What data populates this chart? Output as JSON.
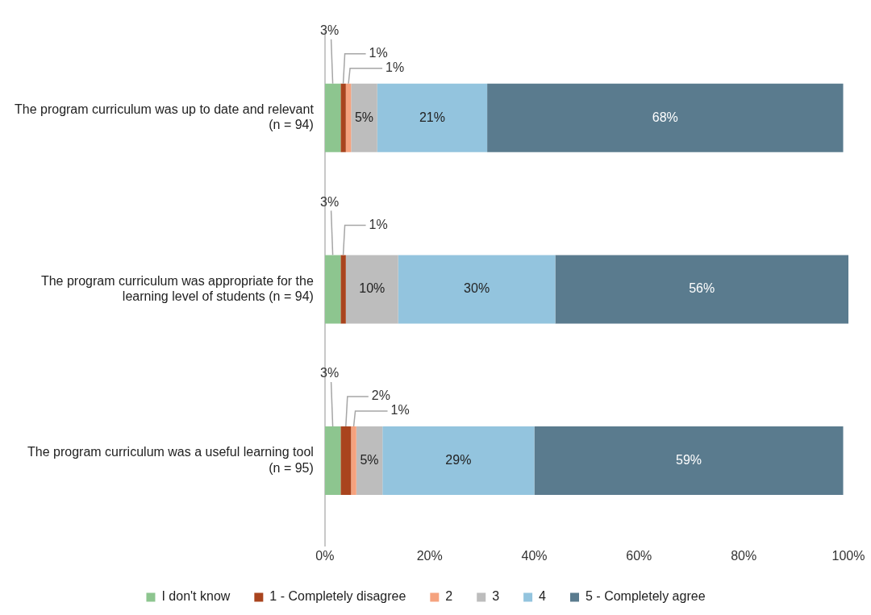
{
  "chart_data": {
    "type": "bar",
    "orientation": "horizontal",
    "stacked": true,
    "categories": [
      "The program curriculum was up to date and relevant (n = 94)",
      "The program curriculum was appropriate for the learning level of students (n = 94)",
      "The program curriculum was a useful learning tool (n = 95)"
    ],
    "series": [
      {
        "name": "I don't know",
        "color": "#8dc58f",
        "values": [
          3,
          3,
          3
        ],
        "value_labels": [
          "3%",
          "3%",
          "3%"
        ]
      },
      {
        "name": "1 - Completely disagree",
        "color": "#a9441e",
        "values": [
          1,
          1,
          2
        ],
        "value_labels": [
          "1%",
          "1%",
          "2%"
        ]
      },
      {
        "name": "2",
        "color": "#f5a27e",
        "values": [
          1,
          0,
          1
        ],
        "value_labels": [
          "1%",
          null,
          "1%"
        ]
      },
      {
        "name": "3",
        "color": "#bdbdbd",
        "values": [
          5,
          10,
          5
        ],
        "value_labels": [
          "5%",
          "10%",
          "5%"
        ]
      },
      {
        "name": "4",
        "color": "#93c4de",
        "values": [
          21,
          30,
          29
        ],
        "value_labels": [
          "21%",
          "30%",
          "29%"
        ]
      },
      {
        "name": "5 - Completely agree",
        "color": "#5a7b8e",
        "values": [
          68,
          56,
          59
        ],
        "value_labels": [
          "68%",
          "56%",
          "59%"
        ]
      }
    ],
    "xlim": [
      0,
      100
    ],
    "xticks": [
      {
        "value": 0,
        "label": "0%"
      },
      {
        "value": 20,
        "label": "20%"
      },
      {
        "value": 40,
        "label": "40%"
      },
      {
        "value": 60,
        "label": "60%"
      },
      {
        "value": 80,
        "label": "80%"
      },
      {
        "value": 100,
        "label": "100%"
      }
    ],
    "grid": false,
    "legend": "bottom"
  }
}
